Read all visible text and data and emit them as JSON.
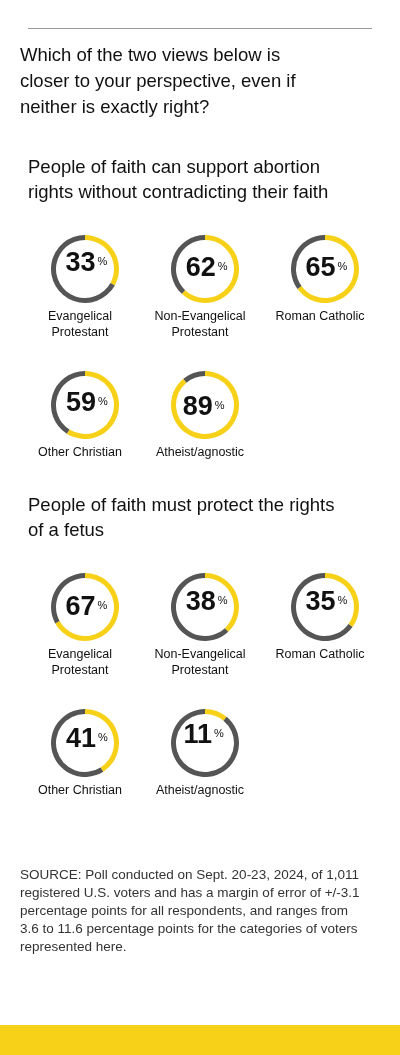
{
  "chart_data": [
    {
      "type": "other",
      "title": "Which of the two views below is closer to your perspective, even if neither is exactly right?"
    },
    {
      "type": "donut",
      "subtitle": "People of faith can support abortion rights without contradicting their faith",
      "title": "Evangelical Protestant",
      "categories": [
        null,
        null
      ],
      "values": [
        33,
        67
      ],
      "colors": [
        "#f7d117",
        "#555555"
      ],
      "value_labels": [
        "33$^{%}$",
        null
      ]
    },
    {
      "type": "donut",
      "title": "Non-Evangelical Protestant",
      "categories": [
        null,
        null
      ],
      "values": [
        62,
        38
      ],
      "colors": [
        "#f7d117",
        "#555555"
      ],
      "value_labels": [
        "62$^{%}$",
        null
      ]
    },
    {
      "type": "donut",
      "title": "Roman Catholic",
      "categories": [
        null,
        null
      ],
      "values": [
        65,
        35
      ],
      "colors": [
        "#f7d117",
        "#555555"
      ],
      "value_labels": [
        "65$^{%}$",
        null
      ]
    },
    {
      "type": "donut",
      "title": "Other Christian",
      "categories": [
        null,
        null
      ],
      "values": [
        59,
        41
      ],
      "colors": [
        "#f7d117",
        "#555555"
      ],
      "value_labels": [
        "59$^{%}$",
        null
      ]
    },
    {
      "type": "donut",
      "title": "Atheist/agnostic",
      "categories": [
        null,
        null
      ],
      "values": [
        89,
        11
      ],
      "colors": [
        "#f7d117",
        "#555555"
      ],
      "value_labels": [
        "89$^{%}$",
        null
      ]
    },
    {
      "type": "donut",
      "subtitle": "People of faith must protect the rights of a fetus",
      "title": "Evangelical Protestant",
      "categories": [
        null,
        null
      ],
      "values": [
        67,
        33
      ],
      "colors": [
        "#f7d117",
        "#555555"
      ],
      "value_labels": [
        "67$^{%}$",
        null
      ]
    },
    {
      "type": "donut",
      "title": "Non-Evangelical Protestant",
      "categories": [
        null,
        null
      ],
      "values": [
        38,
        62
      ],
      "colors": [
        "#f7d117",
        "#555555"
      ],
      "value_labels": [
        "38$^{%}$",
        null
      ]
    },
    {
      "type": "donut",
      "title": "Roman Catholic",
      "categories": [
        null,
        null
      ],
      "values": [
        35,
        65
      ],
      "colors": [
        "#f7d117",
        "#555555"
      ],
      "value_labels": [
        "35$^{%}$",
        null
      ]
    },
    {
      "type": "donut",
      "title": "Other Christian",
      "categories": [
        null,
        null
      ],
      "values": [
        41,
        59
      ],
      "colors": [
        "#f7d117",
        "#555555"
      ],
      "value_labels": [
        "41$^{%}$",
        null
      ]
    },
    {
      "type": "donut",
      "title": "Atheist/agnostic",
      "categories": [
        null,
        null
      ],
      "values": [
        11,
        89
      ],
      "colors": [
        "#f7d117",
        "#555555"
      ],
      "value_labels": [
        "11$^{%}$",
        null
      ]
    },
    {
      "type": "other",
      "annotations": [
        "SOURCE: Poll conducted on Sept. 20-23, 2024, of 1,011 registered U.S. voters and has a margin of error of +/-3.1 percentage points for all respondents, and ranges from 3.6 to 11.6 percentage points for the categories of voters represented here."
      ]
    }
  ]
}
